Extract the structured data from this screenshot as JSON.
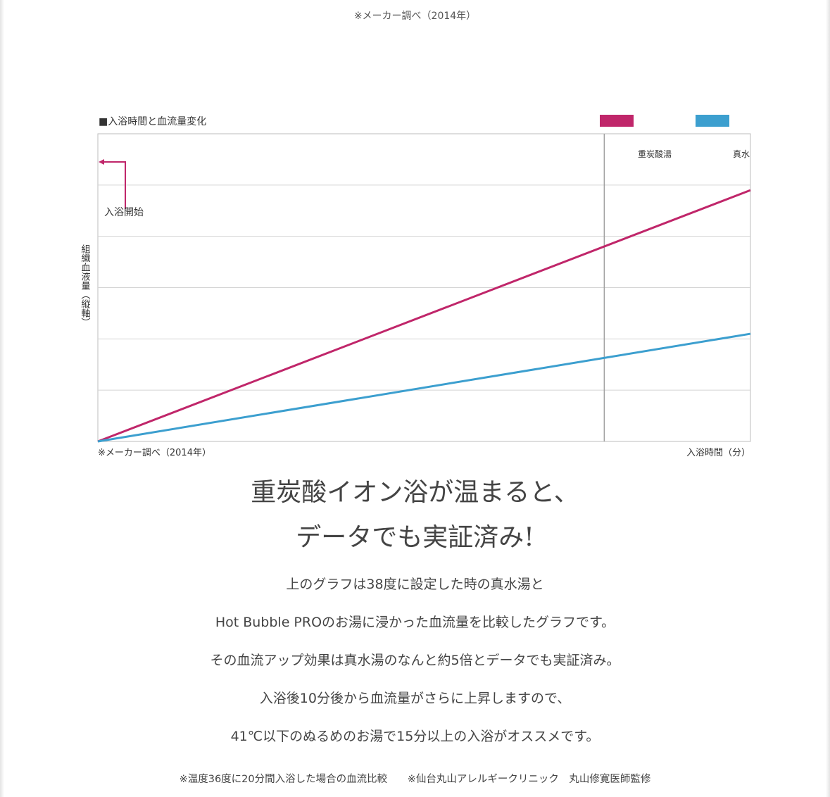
{
  "top_note": "※メーカー調べ（2014年）",
  "headline": {
    "line1": "重炭酸イオン浴が温まると、",
    "line2": "データでも実証済み!"
  },
  "body_lines": [
    "上のグラフは38度に設定した時の真水湯と",
    "Hot Bubble PROのお湯に浸かった血流量を比較したグラフです。",
    "その血流アップ効果は真水湯のなんと約5倍とデータでも実証済み。",
    "入浴後10分後から血流量がさらに上昇しますので、",
    "41℃以下のぬるめのお湯で15分以上の入浴がオススメです。"
  ],
  "foot_notes": [
    "※温度36度に20分間入浴した場合の血流比較",
    "※仙台丸山アレルギークリニック　丸山修寛医師監修"
  ],
  "chart_data": {
    "type": "line",
    "title": "■入浴時間と血流量変化",
    "xlabel": "入浴時間（分）",
    "ylabel": "組織血液量（縦軸）",
    "source_note": "※メーカー調べ（2014年）",
    "start_annotation": "入浴開始",
    "grid": true,
    "legend_position": "top-right",
    "x": [
      0,
      1
    ],
    "xlim": [
      0,
      1
    ],
    "ylim": [
      0,
      6
    ],
    "marker_x": 0.776,
    "series": [
      {
        "name": "重炭酸湯",
        "color": "#c0266a",
        "values": [
          0,
          4.9
        ]
      },
      {
        "name": "真水",
        "color": "#3c9fcf",
        "values": [
          0,
          2.1
        ]
      }
    ]
  }
}
